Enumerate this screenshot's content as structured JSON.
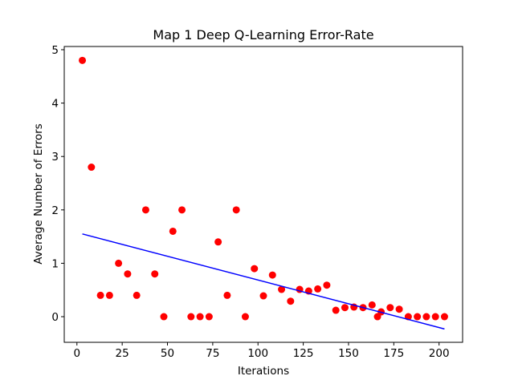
{
  "chart_data": {
    "type": "scatter",
    "title": "Map 1 Deep Q-Learning Error-Rate",
    "xlabel": "Iterations",
    "ylabel": "Average Number of Errors",
    "xlim": [
      -7,
      213
    ],
    "ylim": [
      -0.48,
      5.06
    ],
    "xticks": [
      0,
      25,
      50,
      75,
      100,
      125,
      150,
      175,
      200
    ],
    "yticks": [
      0,
      1,
      2,
      3,
      4,
      5
    ],
    "series": [
      {
        "type": "scatter",
        "color": "#ff0000",
        "x": [
          3,
          8,
          13,
          18,
          23,
          28,
          33,
          38,
          43,
          48,
          53,
          58,
          63,
          68,
          73,
          78,
          83,
          88,
          93,
          98,
          103,
          108,
          113,
          118,
          123,
          128,
          133,
          138,
          143,
          148,
          153,
          158,
          163,
          166,
          168,
          173,
          178,
          183,
          188,
          193,
          198,
          203
        ],
        "values": [
          4.8,
          2.8,
          0.4,
          0.4,
          1.0,
          0.8,
          0.4,
          2.0,
          0.8,
          0,
          1.6,
          2.0,
          0,
          0,
          0,
          1.4,
          0.4,
          2.0,
          0,
          0.9,
          0.39,
          0.78,
          0.51,
          0.29,
          0.51,
          0.48,
          0.52,
          0.59,
          0.12,
          0.17,
          0.18,
          0.17,
          0.22,
          0,
          0.09,
          0.17,
          0.14,
          0,
          0,
          0,
          0,
          0
        ]
      },
      {
        "type": "line",
        "color": "#0000ff",
        "x": [
          3,
          203
        ],
        "values": [
          1.55,
          -0.23
        ]
      }
    ]
  }
}
